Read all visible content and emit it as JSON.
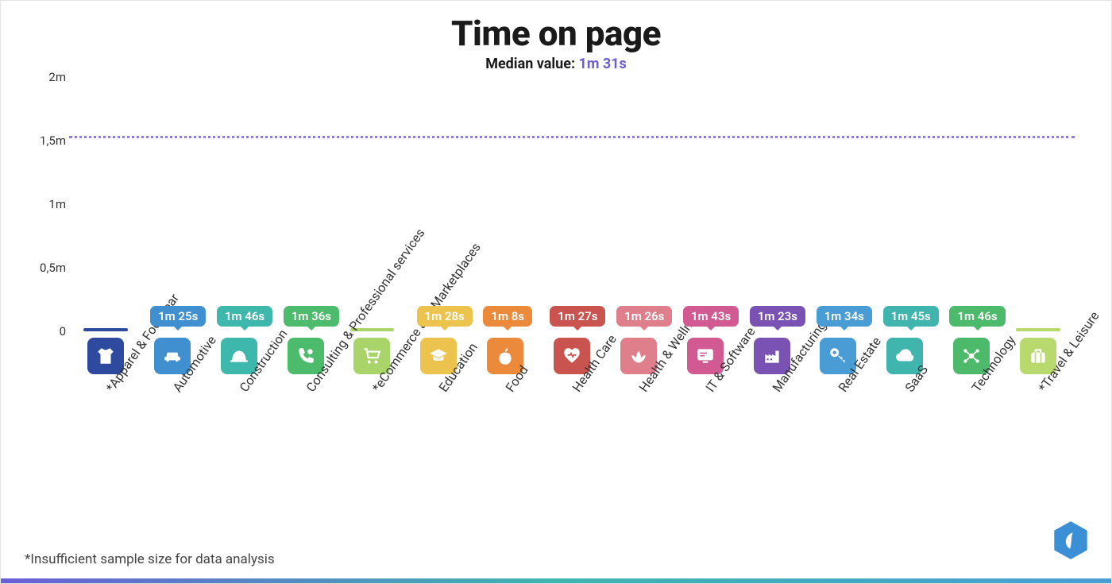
{
  "chart": {
    "type": "bar",
    "title": "Time on page",
    "subtitle_prefix": "Median value: ",
    "subtitle_value": "1m 31s",
    "subtitle_value_color": "#6b5ed6",
    "title_fontsize": 44,
    "subtitle_fontsize": 18,
    "background_color": "#ffffff",
    "median_seconds": 91,
    "median_line_color": "#8b7fd9",
    "ymax_seconds": 120,
    "yticks": [
      {
        "label": "2m",
        "seconds": 120
      },
      {
        "label": "1,5m",
        "seconds": 90
      },
      {
        "label": "1m",
        "seconds": 60
      },
      {
        "label": "0,5m",
        "seconds": 30
      },
      {
        "label": "0",
        "seconds": 0
      }
    ],
    "ytick_fontsize": 15,
    "label_fontsize": 16,
    "label_rotate_deg": -55,
    "bar_width_pct": 66,
    "value_pill_fontsize": 15,
    "icon_box_size": 46,
    "icon_box_radius": 8,
    "categories": [
      {
        "name": "Apparel & Footwear*",
        "value_label": "",
        "seconds": 0,
        "insufficient": true,
        "color": "#2e4a9e",
        "icon": "shirt"
      },
      {
        "name": "Automotive",
        "value_label": "1m 25s",
        "seconds": 85,
        "insufficient": false,
        "color": "#3f8fd1",
        "icon": "car"
      },
      {
        "name": "Construction",
        "value_label": "1m 46s",
        "seconds": 106,
        "insufficient": false,
        "color": "#3eb7ac",
        "icon": "hardhat"
      },
      {
        "name": "Consulting & Professional services",
        "value_label": "1m 36s",
        "seconds": 96,
        "insufficient": false,
        "color": "#4cbb6c",
        "icon": "phone"
      },
      {
        "name": "eCommerce and Marketplaces*",
        "value_label": "",
        "seconds": 0,
        "insufficient": true,
        "color": "#a8d46a",
        "icon": "cart"
      },
      {
        "name": "Education",
        "value_label": "1m 28s",
        "seconds": 88,
        "insufficient": false,
        "color": "#ecc34c",
        "icon": "grad"
      },
      {
        "name": "Food",
        "value_label": "1m 8s",
        "seconds": 68,
        "insufficient": false,
        "color": "#ea8a3a",
        "icon": "apple"
      },
      {
        "name": "Health Care",
        "value_label": "1m 27s",
        "seconds": 87,
        "insufficient": false,
        "color": "#c9534f",
        "icon": "heart"
      },
      {
        "name": "Health & Wellness",
        "value_label": "1m 26s",
        "seconds": 86,
        "insufficient": false,
        "color": "#e07f8c",
        "icon": "lotus"
      },
      {
        "name": "IT & Software",
        "value_label": "1m 43s",
        "seconds": 103,
        "insufficient": false,
        "color": "#d15a93",
        "icon": "monitor"
      },
      {
        "name": "Manufacturing",
        "value_label": "1m 23s",
        "seconds": 83,
        "insufficient": false,
        "color": "#7a52b3",
        "icon": "factory"
      },
      {
        "name": "Real Estate",
        "value_label": "1m 34s",
        "seconds": 94,
        "insufficient": false,
        "color": "#4a9dd4",
        "icon": "key"
      },
      {
        "name": "SaaS",
        "value_label": "1m 45s",
        "seconds": 105,
        "insufficient": false,
        "color": "#3fb5ae",
        "icon": "cloud"
      },
      {
        "name": "Technology",
        "value_label": "1m 46s",
        "seconds": 106,
        "insufficient": false,
        "color": "#4cb96b",
        "icon": "network"
      },
      {
        "name": "Travel & Leisure*",
        "value_label": "",
        "seconds": 0,
        "insufficient": true,
        "color": "#b8d96e",
        "icon": "suitcase"
      }
    ],
    "footnote": "*Insufficient sample size for data analysis",
    "footnote_fontsize": 17,
    "gradient_bar_colors": [
      "#6b5ed6",
      "#3fb5ae",
      "#4a9dd4"
    ],
    "logo_color": "#3b8fd4"
  }
}
